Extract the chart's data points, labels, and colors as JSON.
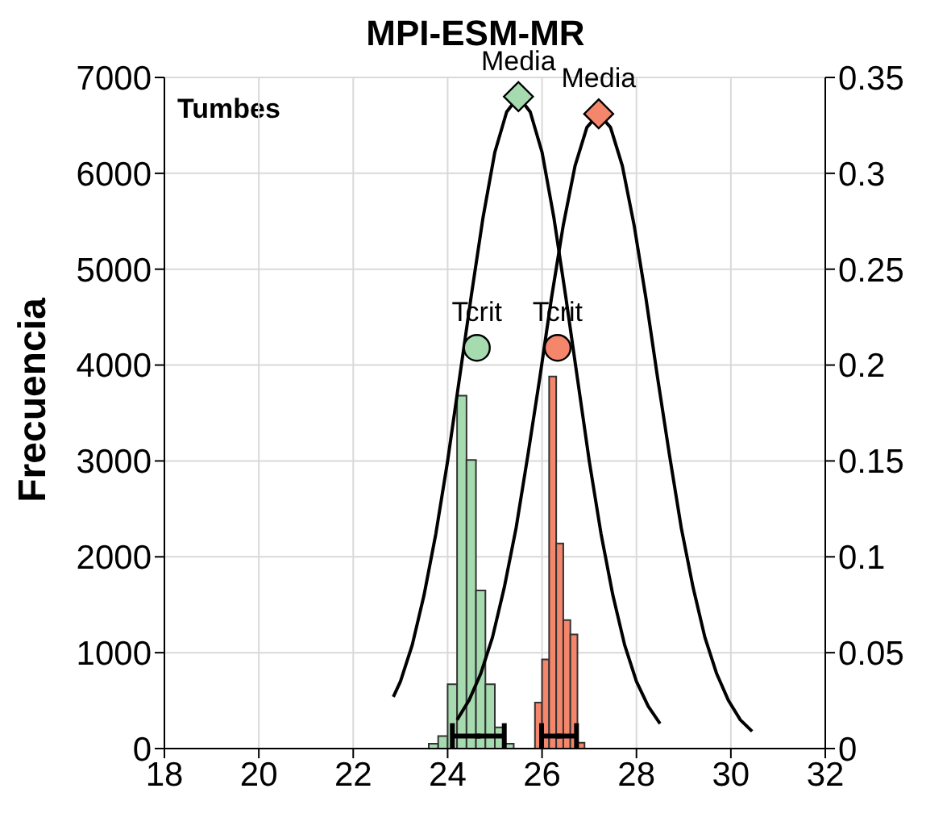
{
  "chart_data": {
    "type": "histogram",
    "title": "MPI-ESM-MR",
    "ylabel": "Frecuencia",
    "annotations": [
      "Tumbes"
    ],
    "xlim": [
      18,
      32
    ],
    "xticks": [
      18,
      20,
      22,
      24,
      26,
      28,
      30,
      32
    ],
    "ylim": [
      0,
      7000
    ],
    "yticks": [
      0,
      1000,
      2000,
      3000,
      4000,
      5000,
      6000,
      7000
    ],
    "y2lim": [
      0,
      0.35
    ],
    "y2ticks": [
      0,
      0.05,
      0.1,
      0.15,
      0.2,
      0.25,
      0.3,
      0.35
    ],
    "grid": true,
    "series": [
      {
        "color": "#a6dbb0",
        "bins": [
          23.6,
          23.8,
          24.0,
          24.2,
          24.4,
          24.6,
          24.8,
          25.0,
          25.2,
          25.4
        ],
        "values": [
          50,
          130,
          670,
          3680,
          3010,
          1650,
          670,
          220,
          50
        ]
      },
      {
        "color": "#f4866c",
        "bins": [
          25.85,
          26.0,
          26.15,
          26.3,
          26.45,
          26.6,
          26.75,
          26.9
        ],
        "values": [
          480,
          930,
          3880,
          2140,
          1340,
          1190,
          60
        ]
      },
      {
        "type": "line",
        "axis": "y2",
        "color": "#000000",
        "marker": "none",
        "x": [
          22.85,
          23,
          23.25,
          23.5,
          23.75,
          24,
          24.25,
          24.5,
          24.75,
          25,
          25.25,
          25.5,
          25.75,
          26,
          26.25,
          26.5,
          26.75,
          27,
          27.25,
          27.5,
          27.75,
          28,
          28.25,
          28.5
        ],
        "values": [
          0.027,
          0.035,
          0.054,
          0.08,
          0.112,
          0.15,
          0.193,
          0.236,
          0.277,
          0.311,
          0.332,
          0.34,
          0.332,
          0.311,
          0.277,
          0.236,
          0.193,
          0.15,
          0.112,
          0.08,
          0.054,
          0.035,
          0.022,
          0.013
        ]
      },
      {
        "type": "line",
        "axis": "y2",
        "color": "#000000",
        "marker": "none",
        "x": [
          24.2,
          24.45,
          24.7,
          24.95,
          25.2,
          25.45,
          25.7,
          25.95,
          26.2,
          26.45,
          26.7,
          26.95,
          27.2,
          27.45,
          27.7,
          27.95,
          28.2,
          28.45,
          28.7,
          28.95,
          29.2,
          29.45,
          29.7,
          29.95,
          30.2,
          30.45
        ],
        "values": [
          0.015,
          0.025,
          0.039,
          0.058,
          0.084,
          0.115,
          0.153,
          0.193,
          0.235,
          0.273,
          0.304,
          0.324,
          0.331,
          0.324,
          0.304,
          0.273,
          0.235,
          0.193,
          0.153,
          0.115,
          0.084,
          0.058,
          0.039,
          0.025,
          0.015,
          0.009
        ]
      },
      {
        "type": "scatter",
        "color": "#000000",
        "marker": "square",
        "x": [
          24.65,
          26.36
        ],
        "values": [
          130,
          130
        ],
        "xerrors": [
          [
            24.1,
            25.2
          ],
          [
            25.99,
            26.73
          ]
        ]
      },
      {
        "type": "scatter",
        "name": "Media",
        "axis": "y2",
        "marker": "diamond",
        "x": [
          25.5,
          27.2
        ],
        "values": [
          0.34,
          0.331
        ],
        "colors": [
          "#a6dbb0",
          "#f4866c"
        ]
      },
      {
        "type": "scatter",
        "name": "Tcrit",
        "axis": "y2",
        "marker": "circle",
        "x": [
          24.62,
          26.33
        ],
        "values": [
          0.209,
          0.209
        ],
        "colors": [
          "#a6dbb0",
          "#f4866c"
        ]
      }
    ]
  }
}
